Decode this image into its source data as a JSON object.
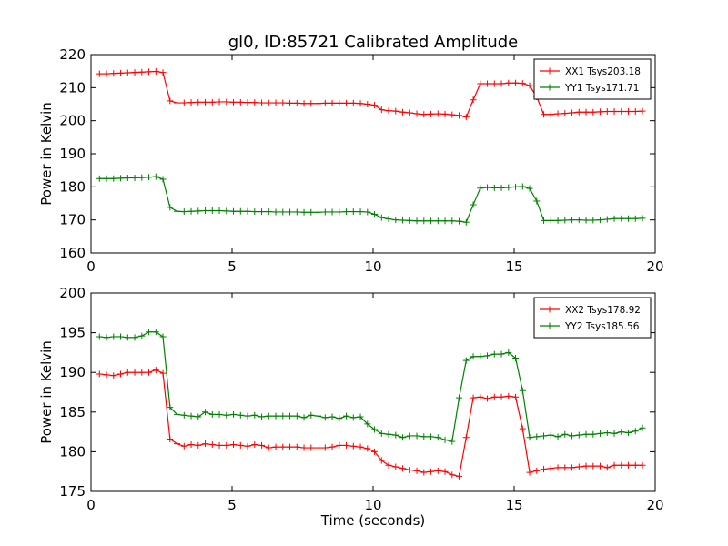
{
  "chart_data": [
    {
      "type": "line",
      "title": "gl0, ID:85721 Calibrated Amplitude",
      "xlabel": "",
      "ylabel": "Power in Kelvin",
      "xlim": [
        0,
        20
      ],
      "ylim": [
        160,
        220
      ],
      "xticks": [
        "0",
        "5",
        "10",
        "15",
        "20"
      ],
      "yticks": [
        "160",
        "170",
        "180",
        "190",
        "200",
        "210",
        "220"
      ],
      "grid": false,
      "legend_position": "top-right",
      "x": [
        0.3,
        0.55,
        0.8,
        1.05,
        1.3,
        1.55,
        1.8,
        2.05,
        2.3,
        2.55,
        2.8,
        3.05,
        3.3,
        3.55,
        3.8,
        4.05,
        4.3,
        4.55,
        4.8,
        5.05,
        5.3,
        5.55,
        5.8,
        6.05,
        6.3,
        6.55,
        6.8,
        7.05,
        7.3,
        7.55,
        7.8,
        8.05,
        8.3,
        8.55,
        8.8,
        9.05,
        9.3,
        9.55,
        9.8,
        10.05,
        10.3,
        10.55,
        10.8,
        11.05,
        11.3,
        11.55,
        11.8,
        12.05,
        12.3,
        12.55,
        12.8,
        13.05,
        13.3,
        13.55,
        13.8,
        14.05,
        14.3,
        14.55,
        14.8,
        15.05,
        15.3,
        15.55,
        15.8,
        16.05,
        16.3,
        16.55,
        16.8,
        17.05,
        17.3,
        17.55,
        17.8,
        18.05,
        18.3,
        18.55,
        18.8,
        19.05,
        19.3,
        19.55
      ],
      "series": [
        {
          "name": "XX1 Tsys203.18",
          "color": "#ff0000",
          "values": [
            214.2,
            214.2,
            214.3,
            214.4,
            214.5,
            214.6,
            214.7,
            214.8,
            214.9,
            214.6,
            206.0,
            205.4,
            205.4,
            205.5,
            205.6,
            205.6,
            205.6,
            205.7,
            205.7,
            205.6,
            205.6,
            205.5,
            205.5,
            205.4,
            205.4,
            205.4,
            205.4,
            205.3,
            205.3,
            205.2,
            205.2,
            205.2,
            205.3,
            205.3,
            205.3,
            205.3,
            205.3,
            205.2,
            205.0,
            204.7,
            203.3,
            203.0,
            202.9,
            202.6,
            202.4,
            202.1,
            201.9,
            202.0,
            202.1,
            202.0,
            201.8,
            201.6,
            201.1,
            206.3,
            211.2,
            211.2,
            211.2,
            211.2,
            211.4,
            211.4,
            211.3,
            210.6,
            207.2,
            201.9,
            201.9,
            202.1,
            202.2,
            202.4,
            202.6,
            202.6,
            202.6,
            202.7,
            202.8,
            202.8,
            202.8,
            202.8,
            202.8,
            202.9
          ]
        },
        {
          "name": "YY1 Tsys171.71",
          "color": "#008000",
          "values": [
            182.5,
            182.5,
            182.5,
            182.6,
            182.7,
            182.7,
            182.8,
            182.9,
            183.1,
            182.3,
            173.8,
            172.6,
            172.5,
            172.6,
            172.7,
            172.8,
            172.8,
            172.8,
            172.7,
            172.6,
            172.6,
            172.6,
            172.5,
            172.5,
            172.5,
            172.4,
            172.4,
            172.4,
            172.4,
            172.3,
            172.3,
            172.3,
            172.4,
            172.4,
            172.4,
            172.5,
            172.5,
            172.5,
            172.4,
            171.7,
            170.7,
            170.3,
            170.0,
            169.9,
            169.8,
            169.7,
            169.7,
            169.7,
            169.7,
            169.7,
            169.7,
            169.6,
            169.3,
            174.6,
            179.6,
            179.8,
            179.7,
            179.7,
            179.8,
            180.0,
            180.1,
            179.5,
            175.7,
            169.8,
            169.8,
            169.8,
            169.9,
            170.0,
            170.0,
            169.9,
            169.9,
            170.0,
            170.2,
            170.4,
            170.4,
            170.4,
            170.4,
            170.5
          ]
        }
      ]
    },
    {
      "type": "line",
      "title": "",
      "xlabel": "Time (seconds)",
      "ylabel": "Power in Kelvin",
      "xlim": [
        0,
        20
      ],
      "ylim": [
        175,
        200
      ],
      "xticks": [
        "0",
        "5",
        "10",
        "15",
        "20"
      ],
      "yticks": [
        "175",
        "180",
        "185",
        "190",
        "195",
        "200"
      ],
      "grid": false,
      "legend_position": "top-right",
      "x": [
        0.3,
        0.55,
        0.8,
        1.05,
        1.3,
        1.55,
        1.8,
        2.05,
        2.3,
        2.55,
        2.8,
        3.05,
        3.3,
        3.55,
        3.8,
        4.05,
        4.3,
        4.55,
        4.8,
        5.05,
        5.3,
        5.55,
        5.8,
        6.05,
        6.3,
        6.55,
        6.8,
        7.05,
        7.3,
        7.55,
        7.8,
        8.05,
        8.3,
        8.55,
        8.8,
        9.05,
        9.3,
        9.55,
        9.8,
        10.05,
        10.3,
        10.55,
        10.8,
        11.05,
        11.3,
        11.55,
        11.8,
        12.05,
        12.3,
        12.55,
        12.8,
        13.05,
        13.3,
        13.55,
        13.8,
        14.05,
        14.3,
        14.55,
        14.8,
        15.05,
        15.3,
        15.55,
        15.8,
        16.05,
        16.3,
        16.55,
        16.8,
        17.05,
        17.3,
        17.55,
        17.8,
        18.05,
        18.3,
        18.55,
        18.8,
        19.05,
        19.3,
        19.55
      ],
      "series": [
        {
          "name": "XX2 Tsys178.92",
          "color": "#ff0000",
          "values": [
            189.8,
            189.7,
            189.6,
            189.8,
            190.0,
            190.0,
            190.0,
            190.0,
            190.3,
            189.9,
            181.6,
            181.0,
            180.7,
            180.9,
            180.8,
            181.0,
            180.9,
            180.8,
            180.8,
            180.9,
            180.8,
            180.7,
            180.9,
            180.8,
            180.5,
            180.6,
            180.6,
            180.6,
            180.6,
            180.5,
            180.5,
            180.5,
            180.5,
            180.6,
            180.8,
            180.8,
            180.7,
            180.6,
            180.4,
            180.0,
            178.9,
            178.3,
            178.1,
            177.9,
            177.7,
            177.6,
            177.4,
            177.5,
            177.6,
            177.5,
            177.1,
            176.9,
            181.8,
            186.8,
            186.9,
            186.7,
            186.9,
            186.9,
            187.0,
            186.9,
            182.9,
            177.4,
            177.6,
            177.8,
            177.9,
            178.0,
            178.0,
            178.0,
            178.1,
            178.2,
            178.2,
            178.2,
            178.0,
            178.3,
            178.3,
            178.3,
            178.3,
            178.3
          ]
        },
        {
          "name": "YY2 Tsys185.56",
          "color": "#008000",
          "values": [
            194.5,
            194.4,
            194.5,
            194.5,
            194.4,
            194.4,
            194.6,
            195.1,
            195.1,
            194.5,
            185.6,
            184.7,
            184.6,
            184.5,
            184.4,
            185.0,
            184.7,
            184.7,
            184.6,
            184.7,
            184.6,
            184.5,
            184.6,
            184.4,
            184.5,
            184.5,
            184.5,
            184.5,
            184.5,
            184.3,
            184.6,
            184.5,
            184.3,
            184.4,
            184.2,
            184.5,
            184.3,
            184.4,
            183.5,
            182.8,
            182.3,
            182.2,
            182.1,
            181.8,
            182.0,
            182.0,
            181.9,
            181.9,
            181.8,
            181.5,
            181.3,
            186.8,
            191.5,
            192.0,
            192.0,
            192.1,
            192.3,
            192.3,
            192.5,
            191.8,
            187.7,
            181.8,
            181.9,
            182.0,
            182.1,
            181.9,
            182.2,
            182.0,
            182.1,
            182.2,
            182.2,
            182.3,
            182.4,
            182.3,
            182.5,
            182.4,
            182.6,
            183.0
          ]
        }
      ]
    }
  ]
}
